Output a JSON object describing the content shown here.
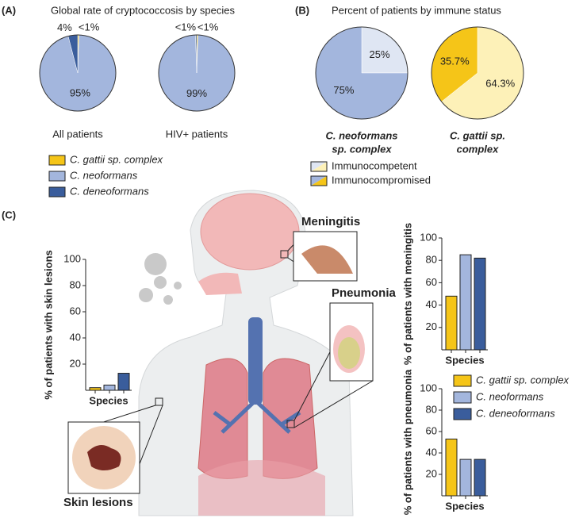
{
  "figure": {
    "panel_labels": [
      "(A)",
      "(B)",
      "(C)"
    ],
    "illustration_labels": [
      "Meningitis",
      "Pneumonia",
      "Skin lesions"
    ]
  },
  "chart_data": [
    {
      "type": "pie",
      "title": "Global rate of cryptococcosis by species",
      "categories": [
        "C. gattii sp. complex",
        "C. neoformans",
        "C. deneoformans"
      ],
      "colors": [
        "#f5c518",
        "#a3b6dd",
        "#3a5d9c"
      ],
      "pies": [
        {
          "label": "All patients",
          "values": [
            0.5,
            95,
            4
          ],
          "value_labels": [
            "<1%",
            "95%",
            "4%"
          ]
        },
        {
          "label": "HIV+ patients",
          "values": [
            0.5,
            99,
            0.5
          ],
          "value_labels": [
            "<1%",
            "99%",
            "<1%"
          ]
        }
      ]
    },
    {
      "type": "pie",
      "title": "Percent of patients by immune status",
      "categories": [
        "Immunocompetent",
        "Immunocompromised"
      ],
      "pies": [
        {
          "label": [
            "C. neoformans",
            "sp. complex"
          ],
          "values": [
            25,
            75
          ],
          "value_labels": [
            "25%",
            "75%"
          ],
          "colors": [
            "#dfe6f3",
            "#a3b6dd"
          ]
        },
        {
          "label": [
            "C. gattii sp.",
            "complex"
          ],
          "values": [
            64.3,
            35.7
          ],
          "value_labels": [
            "64.3%",
            "35.7%"
          ],
          "colors": [
            "#fdf1b8",
            "#f5c518"
          ]
        }
      ]
    },
    {
      "type": "bar",
      "series_names": [
        "C. gattii sp. complex",
        "C. neoformans",
        "C. deneoformans"
      ],
      "colors": [
        "#f5c518",
        "#a3b6dd",
        "#3a5d9c"
      ],
      "panels": [
        {
          "ylabel": "% of patients with skin lesions",
          "xlabel": "Species",
          "values": [
            2,
            4,
            13
          ],
          "ylim": [
            0,
            100
          ],
          "yticks": [
            20,
            40,
            60,
            80,
            100
          ]
        },
        {
          "ylabel": "% of patients with meningitis",
          "xlabel": "Species",
          "values": [
            48,
            85,
            82
          ],
          "ylim": [
            0,
            100
          ],
          "yticks": [
            20,
            40,
            60,
            80,
            100
          ]
        },
        {
          "ylabel": "% of patients with pneumonia",
          "xlabel": "Species",
          "values": [
            53,
            34,
            34
          ],
          "ylim": [
            0,
            100
          ],
          "yticks": [
            20,
            40,
            60,
            80,
            100
          ]
        }
      ]
    }
  ]
}
